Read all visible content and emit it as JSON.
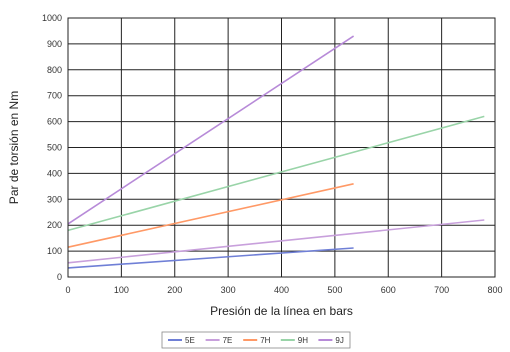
{
  "chart_data": {
    "type": "line",
    "title": "",
    "xlabel": "Presión de la línea en bars",
    "ylabel": "Par de torsión en Nm",
    "xlim": [
      0,
      800
    ],
    "ylim": [
      0,
      1000
    ],
    "x_ticks": [
      0,
      100,
      200,
      300,
      400,
      500,
      600,
      700,
      800
    ],
    "y_ticks": [
      0,
      100,
      200,
      300,
      400,
      500,
      600,
      700,
      800,
      900,
      1000
    ],
    "x_tick_labels": [
      "0",
      "100",
      "200",
      "300",
      "400",
      "500",
      "600",
      "700",
      "800"
    ],
    "y_tick_labels": [
      "0",
      "100",
      "200",
      "300",
      "400",
      "500",
      "600",
      "700",
      "800",
      "900",
      "1000"
    ],
    "grid": true,
    "legend_position": "bottom",
    "series": [
      {
        "name": "5E",
        "color": "#6f7fd6",
        "points": [
          [
            0,
            35
          ],
          [
            535,
            112
          ]
        ]
      },
      {
        "name": "7E",
        "color": "#c8a0dc",
        "points": [
          [
            0,
            55
          ],
          [
            780,
            220
          ]
        ]
      },
      {
        "name": "7H",
        "color": "#ff9966",
        "points": [
          [
            0,
            115
          ],
          [
            535,
            360
          ]
        ]
      },
      {
        "name": "9H",
        "color": "#99d4a8",
        "points": [
          [
            0,
            180
          ],
          [
            780,
            620
          ]
        ]
      },
      {
        "name": "9J",
        "color": "#b78ad8",
        "points": [
          [
            0,
            205
          ],
          [
            535,
            930
          ]
        ]
      }
    ]
  }
}
